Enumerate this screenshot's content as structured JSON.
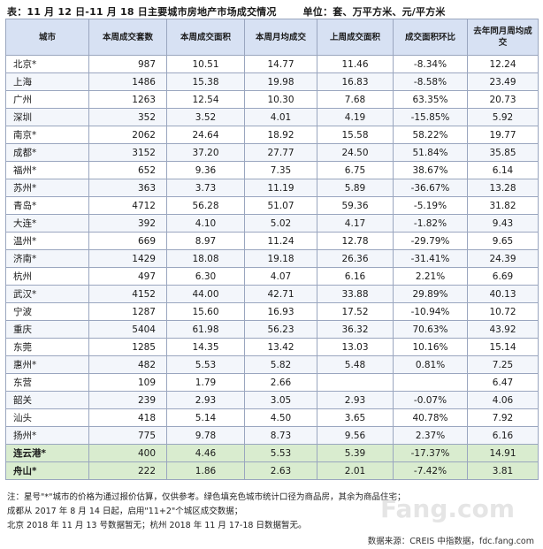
{
  "title": "表：11 月 12 日-11 月 18 日主要城市房地产市场成交情况",
  "unit": "单位：套、万平方米、元/平方米",
  "headers": [
    "城市",
    "本周成交套数",
    "本周成交面积",
    "本周月均成交",
    "上周成交面积",
    "成交面积环比",
    "去年同月周均成交"
  ],
  "rows": [
    {
      "city": "北京*",
      "c1": "987",
      "c2": "10.51",
      "c3": "14.77",
      "c4": "11.46",
      "c5": "-8.34%",
      "c6": "12.24"
    },
    {
      "city": "上海",
      "c1": "1486",
      "c2": "15.38",
      "c3": "19.98",
      "c4": "16.83",
      "c5": "-8.58%",
      "c6": "23.49"
    },
    {
      "city": "广州",
      "c1": "1263",
      "c2": "12.54",
      "c3": "10.30",
      "c4": "7.68",
      "c5": "63.35%",
      "c6": "20.73"
    },
    {
      "city": "深圳",
      "c1": "352",
      "c2": "3.52",
      "c3": "4.01",
      "c4": "4.19",
      "c5": "-15.85%",
      "c6": "5.92"
    },
    {
      "city": "南京*",
      "c1": "2062",
      "c2": "24.64",
      "c3": "18.92",
      "c4": "15.58",
      "c5": "58.22%",
      "c6": "19.77"
    },
    {
      "city": "成都*",
      "c1": "3152",
      "c2": "37.20",
      "c3": "27.77",
      "c4": "24.50",
      "c5": "51.84%",
      "c6": "35.85"
    },
    {
      "city": "福州*",
      "c1": "652",
      "c2": "9.36",
      "c3": "7.35",
      "c4": "6.75",
      "c5": "38.67%",
      "c6": "6.14"
    },
    {
      "city": "苏州*",
      "c1": "363",
      "c2": "3.73",
      "c3": "11.19",
      "c4": "5.89",
      "c5": "-36.67%",
      "c6": "13.28"
    },
    {
      "city": "青岛*",
      "c1": "4712",
      "c2": "56.28",
      "c3": "51.07",
      "c4": "59.36",
      "c5": "-5.19%",
      "c6": "31.82"
    },
    {
      "city": "大连*",
      "c1": "392",
      "c2": "4.10",
      "c3": "5.02",
      "c4": "4.17",
      "c5": "-1.82%",
      "c6": "9.43"
    },
    {
      "city": "温州*",
      "c1": "669",
      "c2": "8.97",
      "c3": "11.24",
      "c4": "12.78",
      "c5": "-29.79%",
      "c6": "9.65"
    },
    {
      "city": "济南*",
      "c1": "1429",
      "c2": "18.08",
      "c3": "19.18",
      "c4": "26.36",
      "c5": "-31.41%",
      "c6": "24.39"
    },
    {
      "city": "杭州",
      "c1": "497",
      "c2": "6.30",
      "c3": "4.07",
      "c4": "6.16",
      "c5": "2.21%",
      "c6": "6.69"
    },
    {
      "city": "武汉*",
      "c1": "4152",
      "c2": "44.00",
      "c3": "42.71",
      "c4": "33.88",
      "c5": "29.89%",
      "c6": "40.13"
    },
    {
      "city": "宁波",
      "c1": "1287",
      "c2": "15.60",
      "c3": "16.93",
      "c4": "17.52",
      "c5": "-10.94%",
      "c6": "10.72"
    },
    {
      "city": "重庆",
      "c1": "5404",
      "c2": "61.98",
      "c3": "56.23",
      "c4": "36.32",
      "c5": "70.63%",
      "c6": "43.92"
    },
    {
      "city": "东莞",
      "c1": "1285",
      "c2": "14.35",
      "c3": "13.42",
      "c4": "13.03",
      "c5": "10.16%",
      "c6": "15.14"
    },
    {
      "city": "惠州*",
      "c1": "482",
      "c2": "5.53",
      "c3": "5.82",
      "c4": "5.48",
      "c5": "0.81%",
      "c6": "7.25"
    },
    {
      "city": "东营",
      "c1": "109",
      "c2": "1.79",
      "c3": "2.66",
      "c4": "",
      "c5": "",
      "c6": "6.47"
    },
    {
      "city": "韶关",
      "c1": "239",
      "c2": "2.93",
      "c3": "3.05",
      "c4": "2.93",
      "c5": "-0.07%",
      "c6": "4.06"
    },
    {
      "city": "汕头",
      "c1": "418",
      "c2": "5.14",
      "c3": "4.50",
      "c4": "3.65",
      "c5": "40.78%",
      "c6": "7.92"
    },
    {
      "city": "扬州*",
      "c1": "775",
      "c2": "9.78",
      "c3": "8.73",
      "c4": "9.56",
      "c5": "2.37%",
      "c6": "6.16"
    },
    {
      "city": "连云港*",
      "c1": "400",
      "c2": "4.46",
      "c3": "5.53",
      "c4": "5.39",
      "c5": "-17.37%",
      "c6": "14.91",
      "green": true
    },
    {
      "city": "舟山*",
      "c1": "222",
      "c2": "1.86",
      "c3": "2.63",
      "c4": "2.01",
      "c5": "-7.42%",
      "c6": "3.81",
      "green": true
    }
  ],
  "notes": [
    "注：星号\"*\"城市的价格为通过报价估算，仅供参考。绿色填充色城市统计口径为商品房，其余为商品住宅；",
    "成都从 2017 年 8 月 14 日起，启用\"11+2\"个城区成交数据；",
    "北京 2018 年 11 月 13 号数据暂无；杭州 2018 年 11 月 17-18 日数据暂无。"
  ],
  "source": "数据来源：CREIS 中指数据，fdc.fang.com",
  "watermark": "Fang.com",
  "colors": {
    "header_bg": "#d7e1f3",
    "green_row": "#d9eccf",
    "border": "#9aa6bf"
  }
}
